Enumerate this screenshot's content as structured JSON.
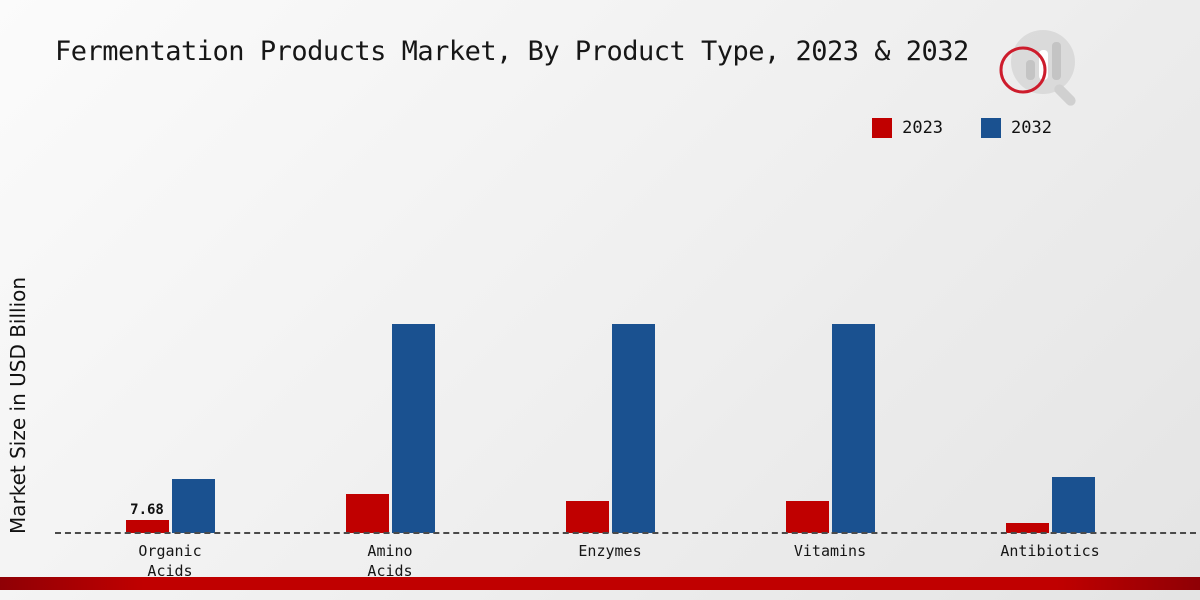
{
  "page": {
    "title": "Fermentation Products Market, By Product Type, 2023 & 2032",
    "ylabel": "Market Size in USD Billion"
  },
  "legend": {
    "position": "top-right",
    "items": [
      {
        "label": "2023",
        "color": "#c00000"
      },
      {
        "label": "2032",
        "color": "#1a5190"
      }
    ]
  },
  "icons": {
    "brand_logo": "magnifier-bar-chart-logo"
  },
  "colors": {
    "series_2023": "#c00000",
    "series_2032": "#1a5190",
    "baseline": "#4a4a4a",
    "bottom_strip": "#c00000",
    "background_start": "#fbfbfb",
    "background_end": "#e4e4e4"
  },
  "chart_data": {
    "type": "bar",
    "title": "Fermentation Products Market, By Product Type, 2023 & 2032",
    "xlabel": "",
    "ylabel": "Market Size in USD Billion",
    "categories": [
      "Organic Acids",
      "Amino Acids",
      "Enzymes",
      "Vitamins",
      "Antibiotics"
    ],
    "category_display": [
      "Organic\nAcids",
      "Amino\nAcids",
      "Enzymes",
      "Vitamins",
      "Antibiotics"
    ],
    "series": [
      {
        "name": "2023",
        "color": "#c00000",
        "values": [
          7.68,
          23.1,
          18.9,
          18.9,
          5.9
        ]
      },
      {
        "name": "2032",
        "color": "#1a5190",
        "values": [
          31.9,
          123.5,
          123.5,
          123.5,
          33.1
        ]
      }
    ],
    "data_labels": [
      {
        "series": "2023",
        "category": "Organic Acids",
        "text": "7.68"
      }
    ],
    "ylim": [
      0,
      140
    ],
    "grid": false,
    "baseline_style": "dashed",
    "legend_position": "top-right"
  }
}
